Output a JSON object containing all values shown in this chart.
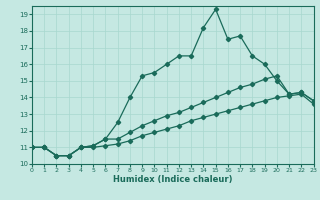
{
  "xlabel": "Humidex (Indice chaleur)",
  "bg_color": "#c5e8e2",
  "line_color": "#1a6b5a",
  "grid_color": "#a8d8cf",
  "xlim": [
    0,
    23
  ],
  "ylim": [
    10,
    19.5
  ],
  "yticks": [
    10,
    11,
    12,
    13,
    14,
    15,
    16,
    17,
    18,
    19
  ],
  "xticks": [
    0,
    1,
    2,
    3,
    4,
    5,
    6,
    7,
    8,
    9,
    10,
    11,
    12,
    13,
    14,
    15,
    16,
    17,
    18,
    19,
    20,
    21,
    22,
    23
  ],
  "line1_x": [
    0,
    1,
    2,
    3,
    4,
    5,
    6,
    7,
    8,
    9,
    10,
    11,
    12,
    13,
    14,
    15,
    16,
    17,
    18,
    19,
    20,
    21,
    22,
    23
  ],
  "line1_y": [
    11.0,
    11.0,
    10.5,
    10.5,
    11.0,
    11.1,
    11.5,
    12.5,
    14.0,
    15.3,
    15.5,
    16.0,
    16.5,
    16.5,
    18.2,
    19.3,
    17.5,
    17.7,
    16.5,
    16.0,
    15.0,
    14.2,
    14.3,
    13.8
  ],
  "line2_x": [
    0,
    1,
    2,
    3,
    4,
    5,
    6,
    7,
    8,
    9,
    10,
    11,
    12,
    13,
    14,
    15,
    16,
    17,
    18,
    19,
    20,
    21,
    22,
    23
  ],
  "line2_y": [
    11.0,
    11.0,
    10.5,
    10.5,
    11.0,
    11.1,
    11.5,
    11.5,
    11.9,
    12.3,
    12.6,
    12.9,
    13.1,
    13.4,
    13.7,
    14.0,
    14.3,
    14.6,
    14.8,
    15.1,
    15.3,
    14.2,
    14.3,
    13.8
  ],
  "line3_x": [
    0,
    1,
    2,
    3,
    4,
    5,
    6,
    7,
    8,
    9,
    10,
    11,
    12,
    13,
    14,
    15,
    16,
    17,
    18,
    19,
    20,
    21,
    22,
    23
  ],
  "line3_y": [
    11.0,
    11.0,
    10.5,
    10.5,
    11.0,
    11.0,
    11.1,
    11.2,
    11.4,
    11.7,
    11.9,
    12.1,
    12.3,
    12.6,
    12.8,
    13.0,
    13.2,
    13.4,
    13.6,
    13.8,
    14.0,
    14.1,
    14.2,
    13.6
  ]
}
